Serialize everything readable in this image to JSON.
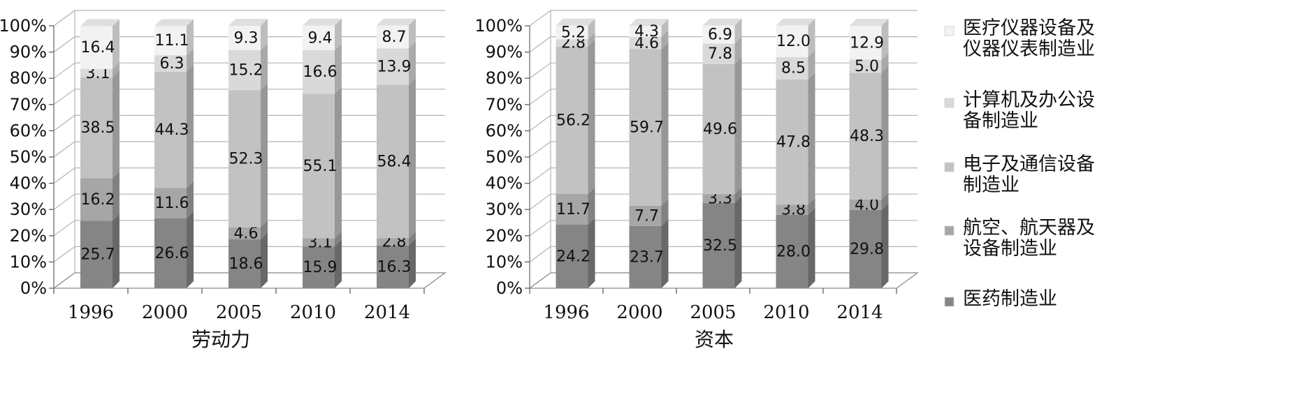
{
  "chart_data": [
    {
      "type": "bar",
      "stacked": true,
      "percent": true,
      "xlabel": "劳动力",
      "categories": [
        "1996",
        "2000",
        "2005",
        "2010",
        "2014"
      ],
      "y_ticks": [
        "0%",
        "10%",
        "20%",
        "30%",
        "40%",
        "50%",
        "60%",
        "70%",
        "80%",
        "90%",
        "100%"
      ],
      "ylim": [
        0,
        100
      ],
      "grid": true,
      "series": [
        {
          "name": "医药制造业",
          "color": "#858585",
          "values": [
            25.7,
            26.6,
            18.6,
            15.9,
            16.3
          ]
        },
        {
          "name": "航空、航天器及设备制造业",
          "color": "#a6a6a6",
          "values": [
            16.2,
            11.6,
            4.6,
            3.1,
            2.8
          ]
        },
        {
          "name": "电子及通信设备制造业",
          "color": "#c2c2c2",
          "values": [
            38.5,
            44.3,
            52.3,
            55.1,
            58.4
          ]
        },
        {
          "name": "计算机及办公设备制造业",
          "color": "#d9d9d9",
          "values": [
            3.1,
            6.3,
            15.2,
            16.6,
            13.9
          ]
        },
        {
          "name": "医疗仪器设备及仪器仪表制造业",
          "color": "#f2f2f2",
          "values": [
            16.4,
            11.1,
            9.3,
            9.4,
            8.7
          ]
        }
      ]
    },
    {
      "type": "bar",
      "stacked": true,
      "percent": true,
      "xlabel": "资本",
      "categories": [
        "1996",
        "2000",
        "2005",
        "2010",
        "2014"
      ],
      "y_ticks": [
        "0%",
        "10%",
        "20%",
        "30%",
        "40%",
        "50%",
        "60%",
        "70%",
        "80%",
        "90%",
        "100%"
      ],
      "ylim": [
        0,
        100
      ],
      "grid": true,
      "series": [
        {
          "name": "医药制造业",
          "color": "#858585",
          "values": [
            24.2,
            23.7,
            32.5,
            28.0,
            29.8
          ]
        },
        {
          "name": "航空、航天器及设备制造业",
          "color": "#a6a6a6",
          "values": [
            11.7,
            7.7,
            3.3,
            3.8,
            4.0
          ]
        },
        {
          "name": "电子及通信设备制造业",
          "color": "#c2c2c2",
          "values": [
            56.2,
            59.7,
            49.6,
            47.8,
            48.3
          ]
        },
        {
          "name": "计算机及办公设备制造业",
          "color": "#d9d9d9",
          "values": [
            2.8,
            4.6,
            7.8,
            8.5,
            5.0
          ]
        },
        {
          "name": "医疗仪器设备及仪器仪表制造业",
          "color": "#f2f2f2",
          "values": [
            5.2,
            4.3,
            6.9,
            12.0,
            12.9
          ]
        }
      ]
    }
  ],
  "legend": {
    "placement": "right",
    "items": [
      {
        "lines": [
          "医疗仪器设备及",
          "仪器仪表制造业"
        ],
        "color": "#f2f2f2"
      },
      {
        "lines": [
          "计算机及办公设",
          "备制造业"
        ],
        "color": "#d9d9d9"
      },
      {
        "lines": [
          "电子及通信设备",
          "制造业"
        ],
        "color": "#c2c2c2"
      },
      {
        "lines": [
          "航空、航天器及",
          "设备制造业"
        ],
        "color": "#a6a6a6"
      },
      {
        "lines": [
          "医药制造业"
        ],
        "color": "#858585"
      }
    ]
  }
}
